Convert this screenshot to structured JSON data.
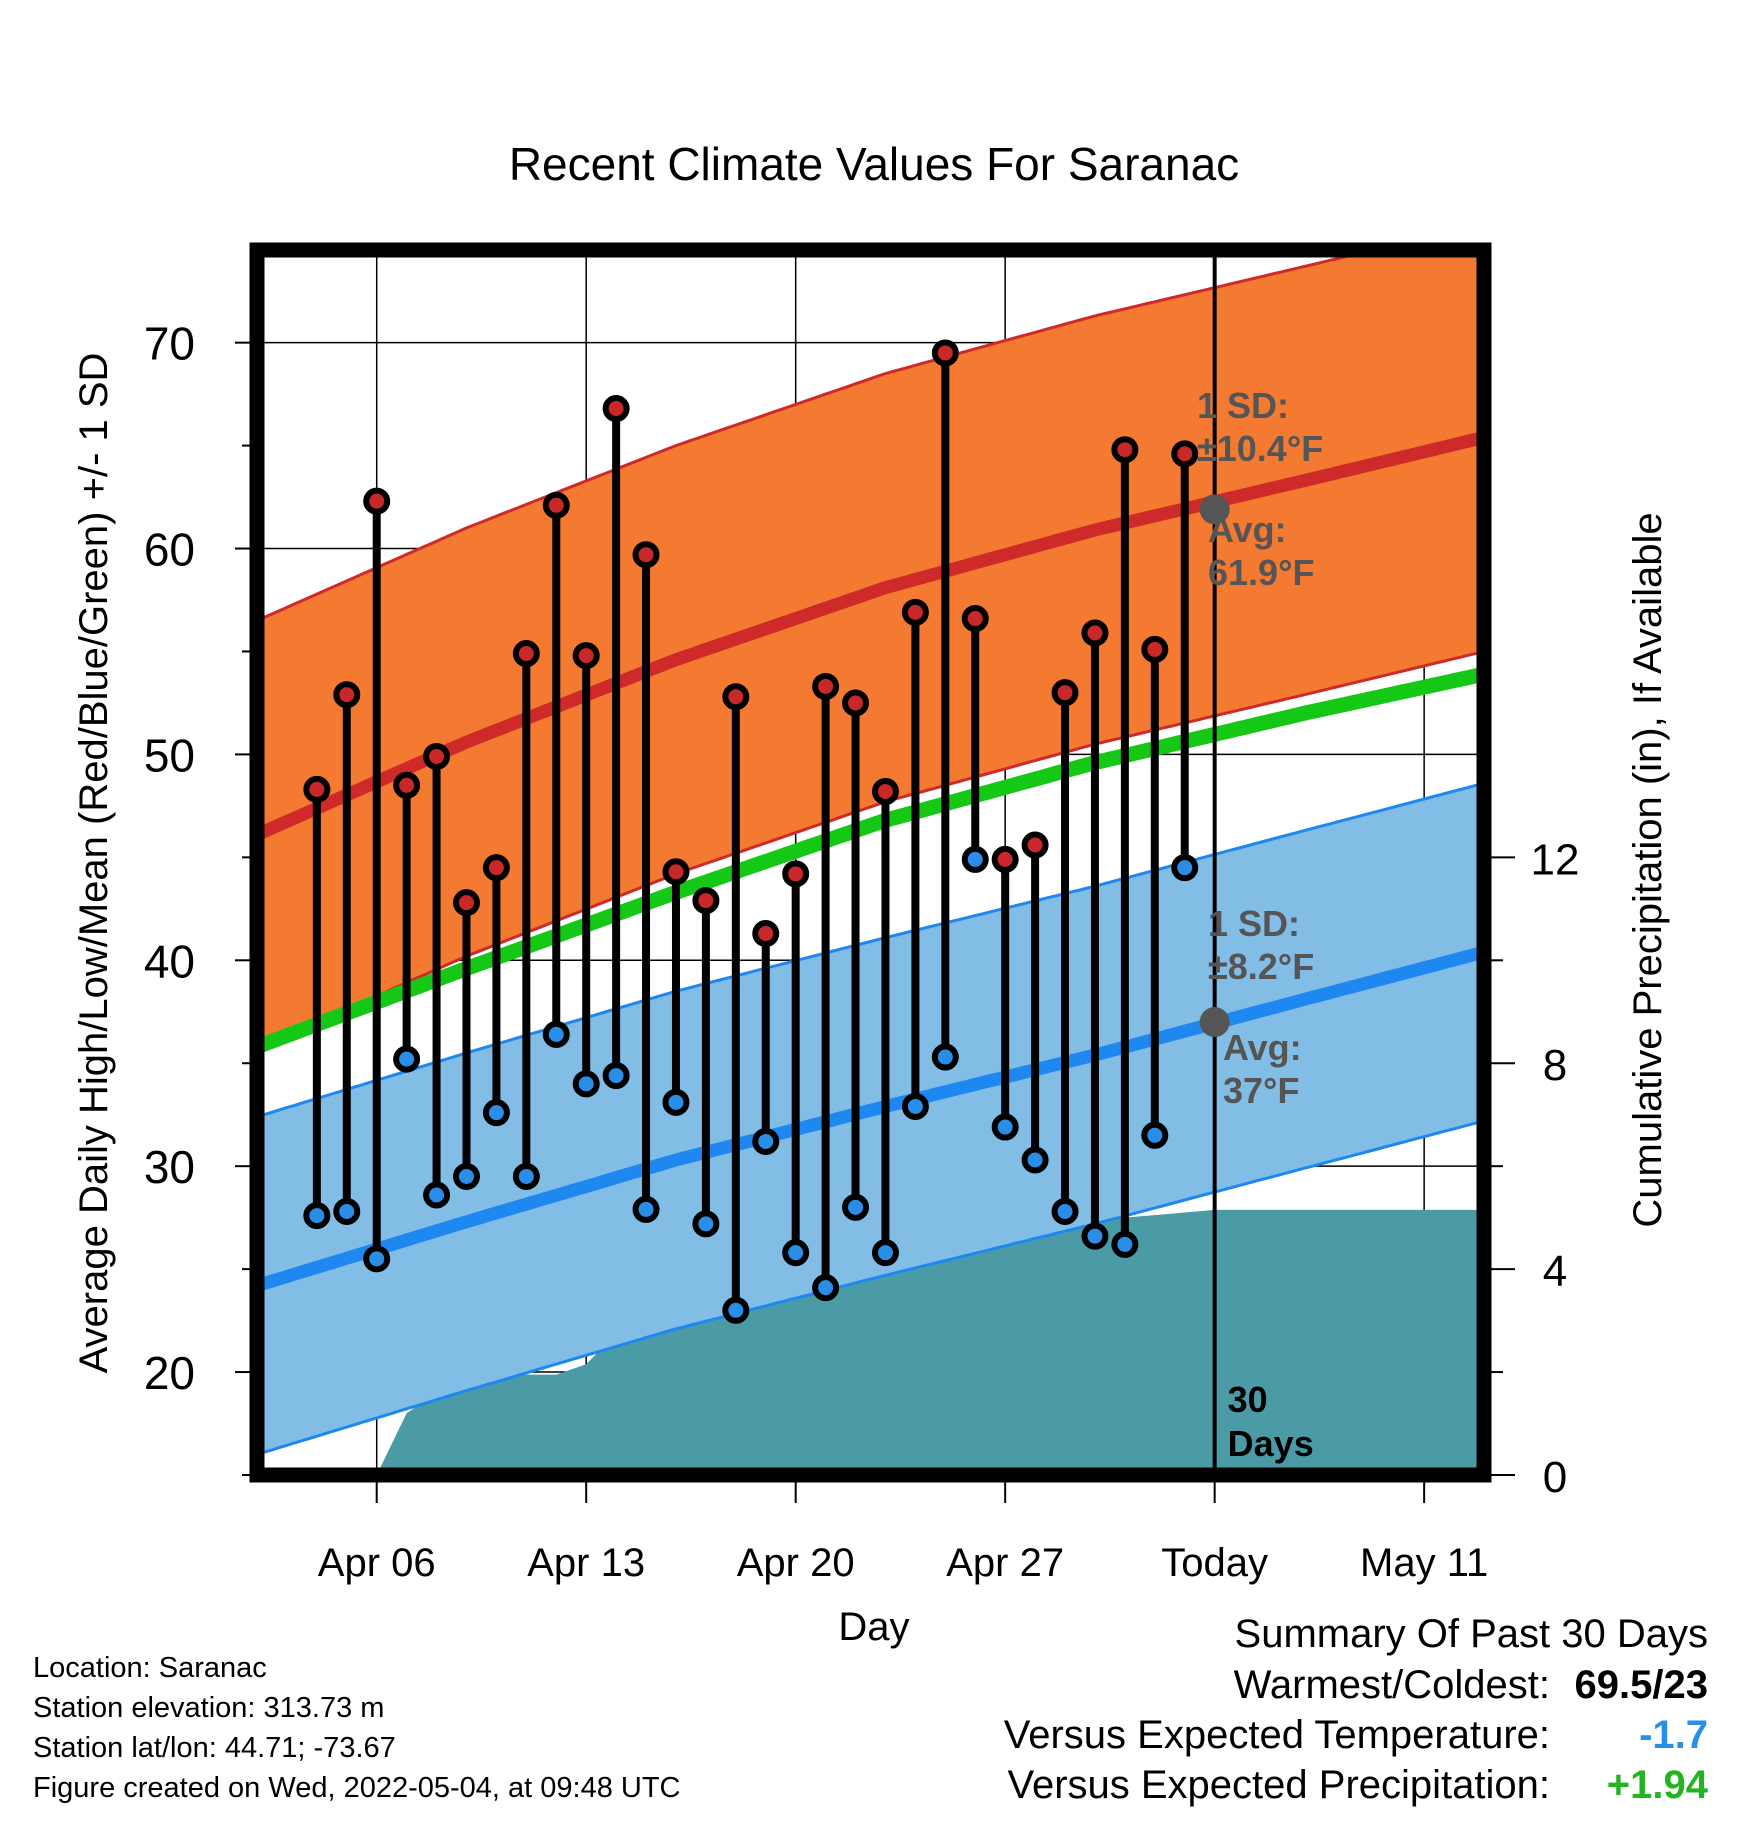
{
  "chart_data": {
    "type": "line",
    "title": "Recent Climate Values For Saranac",
    "xlabel": "Day",
    "ylabel": "Average Daily High/Low/Mean (Red/Blue/Green) +/- 1 SD",
    "y2label": "Cumulative Precipitation (in), If Available",
    "ylim": [
      15,
      74.5
    ],
    "y2lim": [
      0,
      23.8
    ],
    "yticks": [
      20,
      30,
      40,
      50,
      60,
      70
    ],
    "y2ticks": [
      0,
      4,
      8,
      12
    ],
    "xlim": [
      "2022-04-02",
      "2022-05-13"
    ],
    "xticks": [
      {
        "date": "2022-04-06",
        "label": "Apr 06"
      },
      {
        "date": "2022-04-13",
        "label": "Apr 13"
      },
      {
        "date": "2022-04-20",
        "label": "Apr 20"
      },
      {
        "date": "2022-04-27",
        "label": "Apr 27"
      },
      {
        "date": "2022-05-04",
        "label": "Today"
      },
      {
        "date": "2022-05-11",
        "label": "May 11"
      }
    ],
    "grid": true,
    "today": "2022-05-04",
    "today_label": [
      "30",
      "Days"
    ],
    "days": [
      "2022-04-04",
      "2022-04-05",
      "2022-04-06",
      "2022-04-07",
      "2022-04-08",
      "2022-04-09",
      "2022-04-10",
      "2022-04-11",
      "2022-04-12",
      "2022-04-13",
      "2022-04-14",
      "2022-04-15",
      "2022-04-16",
      "2022-04-17",
      "2022-04-18",
      "2022-04-19",
      "2022-04-20",
      "2022-04-21",
      "2022-04-22",
      "2022-04-23",
      "2022-04-24",
      "2022-04-25",
      "2022-04-26",
      "2022-04-27",
      "2022-04-28",
      "2022-04-29",
      "2022-04-30",
      "2022-05-01",
      "2022-05-02",
      "2022-05-03"
    ],
    "series": [
      {
        "name": "High",
        "color": "#c8282a",
        "values": [
          48.3,
          52.9,
          62.3,
          48.5,
          49.9,
          42.8,
          44.5,
          54.9,
          62.1,
          54.8,
          66.8,
          59.7,
          44.3,
          42.9,
          52.8,
          41.3,
          44.2,
          53.3,
          52.5,
          48.2,
          56.9,
          69.5,
          56.6,
          44.9,
          45.6,
          53.0,
          55.9,
          64.8,
          55.1,
          64.6
        ]
      },
      {
        "name": "Low",
        "color": "#2a8ee8",
        "values": [
          27.6,
          27.8,
          25.5,
          35.2,
          28.6,
          29.5,
          32.6,
          29.5,
          36.4,
          34.0,
          34.4,
          27.9,
          33.1,
          27.2,
          23.0,
          31.2,
          25.8,
          24.1,
          28.0,
          25.8,
          32.9,
          35.3,
          44.9,
          31.9,
          30.3,
          27.8,
          26.6,
          26.2,
          31.5,
          44.5
        ]
      }
    ],
    "normals": {
      "days": [
        "2022-04-02",
        "2022-04-09",
        "2022-04-16",
        "2022-04-23",
        "2022-04-30",
        "2022-05-07",
        "2022-05-13"
      ],
      "high_mean": [
        46.1,
        50.6,
        54.6,
        58.1,
        60.9,
        63.3,
        65.4
      ],
      "high_sd": 10.4,
      "low_mean": [
        24.2,
        27.3,
        30.3,
        32.9,
        35.4,
        38.1,
        40.4
      ],
      "low_sd": 8.2,
      "mean": [
        35.8,
        39.6,
        43.3,
        46.8,
        49.6,
        52.0,
        53.9
      ]
    },
    "precip_cumulative": {
      "days": [
        "2022-04-02",
        "2022-04-05",
        "2022-04-06",
        "2022-04-07",
        "2022-04-08",
        "2022-04-09",
        "2022-04-10",
        "2022-04-11",
        "2022-04-12",
        "2022-04-13",
        "2022-04-14",
        "2022-04-15",
        "2022-04-16",
        "2022-04-17",
        "2022-04-18",
        "2022-04-19",
        "2022-04-20",
        "2022-04-21",
        "2022-04-25",
        "2022-04-28",
        "2022-05-01",
        "2022-05-02",
        "2022-05-04",
        "2022-05-13"
      ],
      "values": [
        0,
        0,
        0,
        1.2,
        1.6,
        1.85,
        1.95,
        1.95,
        1.95,
        2.15,
        2.75,
        2.95,
        3.2,
        3.2,
        3.2,
        4.9,
        4.95,
        5.0,
        5.0,
        5.0,
        5.0,
        5.05,
        5.15,
        5.15
      ]
    },
    "annotations": {
      "high_sd_label": [
        "1 SD:",
        "±10.4°F"
      ],
      "high_avg_label": [
        "Avg:",
        "61.9°F"
      ],
      "low_sd_label": [
        "1 SD:",
        "±8.2°F"
      ],
      "low_avg_label": [
        "Avg:",
        "37°F"
      ],
      "high_avg_today": 61.9,
      "low_avg_today": 37.0
    },
    "colors": {
      "high_band": "#f47a32",
      "high_line": "#cf2a2a",
      "low_band": "#82bde6",
      "low_line": "#1e88f0",
      "mean_line": "#16c816",
      "precip": "#4a9ba6",
      "annotation_text": "#555555",
      "marker_edge": "#000000"
    }
  },
  "footer": {
    "location": "Location: Saranac",
    "elevation": "Station elevation: 313.73 m",
    "latlon": "Station lat/lon: 44.71; -73.67",
    "created": "Figure created on Wed, 2022-05-04, at 09:48 UTC"
  },
  "summary": {
    "title": "Summary Of Past 30 Days",
    "warmest_label": "Warmest/Coldest:",
    "warmest_value": "69.5/23",
    "temp_label": "Versus Expected Temperature:",
    "temp_value": "-1.7",
    "temp_color": "#2a8ee8",
    "precip_label": "Versus Expected Precipitation:",
    "precip_value": "+1.94",
    "precip_color": "#22b422"
  }
}
